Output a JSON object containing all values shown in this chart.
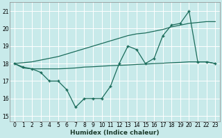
{
  "title": "",
  "xlabel": "Humidex (Indice chaleur)",
  "ylabel": "",
  "bg_color": "#c8eaea",
  "grid_color": "#ffffff",
  "line_color": "#1a6b5a",
  "ylim": [
    14.7,
    21.5
  ],
  "xlim": [
    -0.5,
    23.5
  ],
  "yticks": [
    15,
    16,
    17,
    18,
    19,
    20,
    21
  ],
  "xticks": [
    0,
    1,
    2,
    3,
    4,
    5,
    6,
    7,
    8,
    9,
    10,
    11,
    12,
    13,
    14,
    15,
    16,
    17,
    18,
    19,
    20,
    21,
    22,
    23
  ],
  "x": [
    0,
    1,
    2,
    3,
    4,
    5,
    6,
    7,
    8,
    9,
    10,
    11,
    12,
    13,
    14,
    15,
    16,
    17,
    18,
    19,
    20,
    21,
    22,
    23
  ],
  "y_zigzag": [
    18.0,
    17.8,
    17.7,
    17.5,
    17.0,
    17.0,
    16.5,
    15.5,
    16.0,
    16.0,
    16.0,
    16.7,
    18.0,
    19.0,
    18.8,
    18.0,
    18.3,
    19.6,
    20.2,
    20.3,
    21.0,
    18.1,
    18.1,
    18.0
  ],
  "y_trend": [
    18.0,
    18.05,
    18.1,
    18.2,
    18.3,
    18.4,
    18.55,
    18.7,
    18.85,
    19.0,
    19.15,
    19.3,
    19.45,
    19.6,
    19.7,
    19.75,
    19.85,
    19.95,
    20.1,
    20.2,
    20.3,
    20.35,
    20.4,
    20.4
  ],
  "y_flat": [
    18.0,
    17.75,
    17.7,
    17.7,
    17.7,
    17.7,
    17.72,
    17.75,
    17.8,
    17.82,
    17.85,
    17.88,
    17.9,
    17.92,
    17.95,
    17.97,
    18.0,
    18.02,
    18.05,
    18.07,
    18.1,
    18.1,
    18.1,
    18.0
  ]
}
